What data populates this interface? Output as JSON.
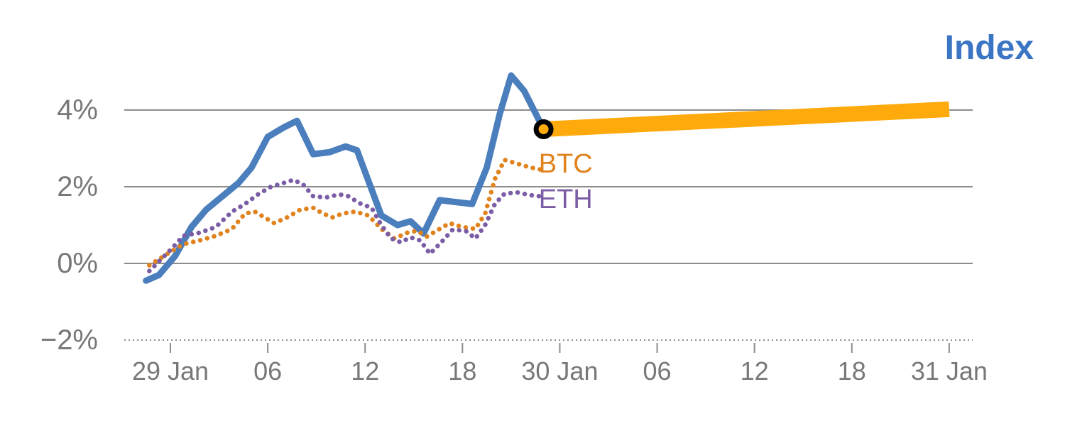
{
  "chart_data": {
    "type": "line",
    "title": "Index",
    "title_color": "#3b76c4",
    "background": "#ffffff",
    "axis_color": "#8c8c8c",
    "label_color": "#787878",
    "grid": true,
    "legend_position": "inline-labels",
    "x_axis": {
      "unit": "hours since 29 Jan 00:00",
      "range": [
        -2.845,
        49.45
      ],
      "ticks": [
        {
          "hour": 0,
          "label": "29 Jan"
        },
        {
          "hour": 6,
          "label": "06"
        },
        {
          "hour": 12,
          "label": "12"
        },
        {
          "hour": 18,
          "label": "18"
        },
        {
          "hour": 24,
          "label": "30 Jan"
        },
        {
          "hour": 30,
          "label": "06"
        },
        {
          "hour": 36,
          "label": "12"
        },
        {
          "hour": 42,
          "label": "18"
        },
        {
          "hour": 48,
          "label": "31 Jan"
        }
      ]
    },
    "y_axis": {
      "unit": "percent change",
      "range": [
        -2.074,
        5.333
      ],
      "ticks": [
        {
          "value": 4,
          "label": "4%",
          "dashed": false
        },
        {
          "value": 2,
          "label": "2%",
          "dashed": false
        },
        {
          "value": 0,
          "label": "0%",
          "dashed": false
        },
        {
          "value": -2,
          "label": "−2%",
          "dashed": true
        }
      ]
    },
    "series": [
      {
        "name": "Index",
        "color": "#4a7ebc",
        "line_style": "solid",
        "points": [
          [
            -1.5,
            -0.45
          ],
          [
            -0.7,
            -0.3
          ],
          [
            0.3,
            0.2
          ],
          [
            1.3,
            0.95
          ],
          [
            2.2,
            1.4
          ],
          [
            3.2,
            1.75
          ],
          [
            4.2,
            2.1
          ],
          [
            5,
            2.5
          ],
          [
            6,
            3.3
          ],
          [
            7,
            3.55
          ],
          [
            7.8,
            3.72
          ],
          [
            8.8,
            2.85
          ],
          [
            9.8,
            2.9
          ],
          [
            10.8,
            3.05
          ],
          [
            11.5,
            2.95
          ],
          [
            13,
            1.25
          ],
          [
            14,
            1.0
          ],
          [
            14.8,
            1.1
          ],
          [
            15.6,
            0.78
          ],
          [
            16.6,
            1.65
          ],
          [
            17.6,
            1.6
          ],
          [
            18.6,
            1.55
          ],
          [
            19.5,
            2.5
          ],
          [
            20.3,
            3.9
          ],
          [
            21,
            4.9
          ],
          [
            21.8,
            4.5
          ],
          [
            23,
            3.5
          ]
        ]
      },
      {
        "name": "BTC",
        "color": "#e0831c",
        "line_style": "dotted",
        "label_pos": [
          22.7,
          2.37
        ],
        "points": [
          [
            -1.3,
            -0.05
          ],
          [
            0,
            0.3
          ],
          [
            0.8,
            0.5
          ],
          [
            1.8,
            0.6
          ],
          [
            2.8,
            0.72
          ],
          [
            3.8,
            0.9
          ],
          [
            4.6,
            1.3
          ],
          [
            5.2,
            1.35
          ],
          [
            5.8,
            1.2
          ],
          [
            6.4,
            1.05
          ],
          [
            7.2,
            1.2
          ],
          [
            8,
            1.4
          ],
          [
            8.8,
            1.45
          ],
          [
            9.4,
            1.3
          ],
          [
            10,
            1.2
          ],
          [
            10.6,
            1.3
          ],
          [
            11.4,
            1.35
          ],
          [
            12.2,
            1.25
          ],
          [
            13,
            0.9
          ],
          [
            13.8,
            0.65
          ],
          [
            14.6,
            0.8
          ],
          [
            15.2,
            0.85
          ],
          [
            15.8,
            0.7
          ],
          [
            16.6,
            0.9
          ],
          [
            17.2,
            1.05
          ],
          [
            18,
            0.95
          ],
          [
            18.8,
            0.9
          ],
          [
            19.4,
            1.3
          ],
          [
            20,
            2.2
          ],
          [
            20.6,
            2.7
          ],
          [
            21.4,
            2.6
          ],
          [
            22.2,
            2.5
          ],
          [
            22.8,
            2.45
          ]
        ]
      },
      {
        "name": "ETH",
        "color": "#7b5da6",
        "line_style": "dotted",
        "label_pos": [
          22.7,
          1.44
        ],
        "points": [
          [
            -1.3,
            -0.2
          ],
          [
            0,
            0.35
          ],
          [
            0.8,
            0.72
          ],
          [
            1.8,
            0.8
          ],
          [
            2.8,
            0.95
          ],
          [
            3.8,
            1.35
          ],
          [
            4.6,
            1.55
          ],
          [
            5.4,
            1.8
          ],
          [
            6.2,
            2.0
          ],
          [
            7,
            2.1
          ],
          [
            7.6,
            2.18
          ],
          [
            8.2,
            2.05
          ],
          [
            8.8,
            1.75
          ],
          [
            9.6,
            1.72
          ],
          [
            10.4,
            1.8
          ],
          [
            11,
            1.75
          ],
          [
            11.6,
            1.58
          ],
          [
            12.4,
            1.45
          ],
          [
            13,
            1.0
          ],
          [
            13.6,
            0.65
          ],
          [
            14.2,
            0.55
          ],
          [
            14.8,
            0.68
          ],
          [
            15.4,
            0.6
          ],
          [
            16,
            0.25
          ],
          [
            16.8,
            0.6
          ],
          [
            17.4,
            0.88
          ],
          [
            18.2,
            0.85
          ],
          [
            18.8,
            0.65
          ],
          [
            19.4,
            1.0
          ],
          [
            20,
            1.55
          ],
          [
            20.6,
            1.82
          ],
          [
            21.4,
            1.85
          ],
          [
            22.2,
            1.78
          ],
          [
            22.8,
            1.75
          ]
        ]
      }
    ],
    "projection": {
      "series": "Index",
      "color": "#ffaa0c",
      "from": [
        23,
        3.5
      ],
      "to": [
        48,
        4.02
      ],
      "thickness": 22
    },
    "marker": {
      "x": 23,
      "y": 3.5,
      "fill": "#ffaa0c",
      "stroke": "#000000"
    }
  }
}
